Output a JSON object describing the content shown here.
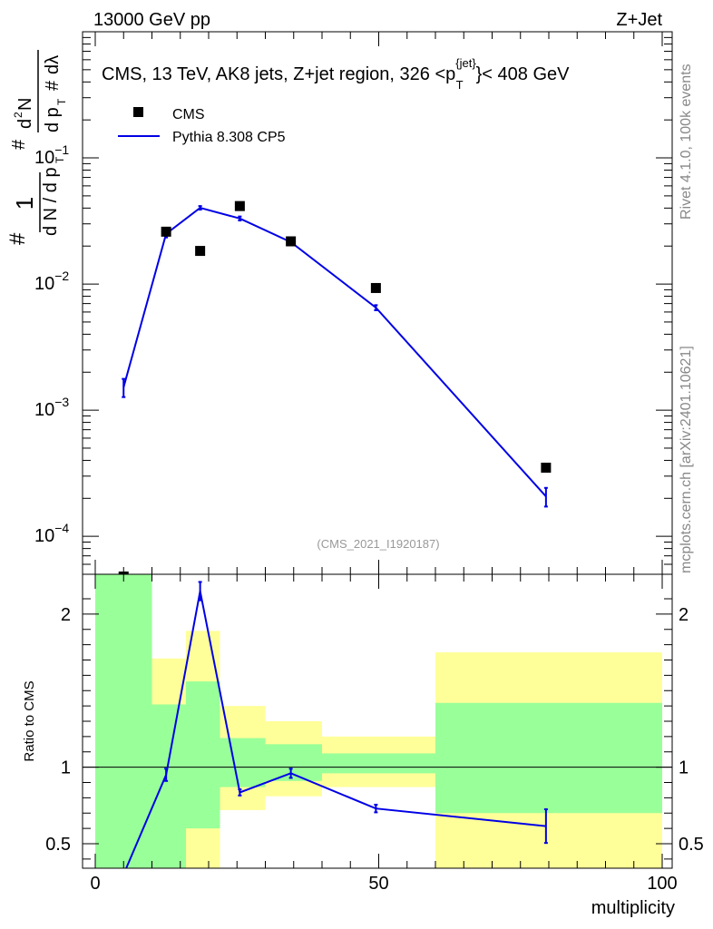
{
  "header": {
    "left": "13000 GeV pp",
    "right": "Z+Jet"
  },
  "side_labels": {
    "rivet": "Rivet 4.1.0,  100k events",
    "mcplots": "mcplots.cern.ch [arXiv:2401.10621]"
  },
  "colors": {
    "mc_line": "#0000e6",
    "band_inner": "#99ff99",
    "band_outer": "#ffff99",
    "data_marker": "#000000"
  },
  "chart_data": [
    {
      "type": "line",
      "panel": "main",
      "title": "CMS, 13 TeV, AK8 jets, Z+jet region, 326 <p_T^{jet}< 408 GeV",
      "title_parts": {
        "prefix": "CMS, 13 TeV, AK8 jets, Z+jet region, 326 <p",
        "sup": "{jet}",
        "sub": "T",
        "suffix": "}< 408 GeV"
      },
      "ylabel": "1/(dN/dp_T) d²N/(dp_T dλ)",
      "yscale": "log",
      "ylim": [
        5e-05,
        1
      ],
      "xlim": [
        -1.5,
        100
      ],
      "yticks": [
        {
          "value": 0.1,
          "base": "10",
          "exp": "−1"
        },
        {
          "value": 0.01,
          "base": "10",
          "exp": "−2"
        },
        {
          "value": 0.001,
          "base": "10",
          "exp": "−3"
        },
        {
          "value": 0.0001,
          "base": "10",
          "exp": "−4"
        }
      ],
      "annotation": "(CMS_2021_I1920187)",
      "legend": {
        "position": "top-left",
        "entries": [
          "CMS",
          "Pythia 8.308 CP5"
        ]
      },
      "series": [
        {
          "name": "CMS",
          "kind": "markers",
          "x": [
            5,
            12.5,
            18.5,
            25.5,
            34.5,
            49.5,
            79.5
          ],
          "y": [
            4.8e-05,
            0.026,
            0.0183,
            0.0415,
            0.0218,
            0.0093,
            0.00035
          ]
        },
        {
          "name": "Pythia 8.308 CP5",
          "kind": "line",
          "x": [
            5,
            12.5,
            18.5,
            25.5,
            34.5,
            49.5,
            79.5
          ],
          "y": [
            0.00152,
            0.025,
            0.0402,
            0.0331,
            0.0215,
            0.0065,
            0.000207
          ],
          "yerr_low": [
            0.00025,
            0.0016,
            0.0013,
            0.0012,
            0.0007,
            0.0003,
            3.5e-05
          ],
          "yerr_high": [
            0.00025,
            0.0016,
            0.0013,
            0.0012,
            0.0007,
            0.0003,
            3.5e-05
          ]
        }
      ]
    },
    {
      "type": "line",
      "panel": "ratio",
      "ylabel": "Ratio to CMS",
      "xlabel": "multiplicity",
      "ylim": [
        0.34,
        2.26
      ],
      "xlim": [
        -1.5,
        100
      ],
      "xticks": [
        0,
        50,
        100
      ],
      "yticks": [
        0.5,
        1,
        2
      ],
      "reference_line": 1,
      "bands": [
        {
          "x0": 0,
          "x1": 10,
          "inner": [
            0.3,
            2.26
          ],
          "outer": [
            0.3,
            2.26
          ]
        },
        {
          "x0": 10,
          "x1": 16,
          "inner": [
            0.3,
            1.41
          ],
          "outer": [
            0.3,
            1.71
          ]
        },
        {
          "x0": 16,
          "x1": 22,
          "inner": [
            0.6,
            1.56
          ],
          "outer": [
            0.3,
            1.89
          ]
        },
        {
          "x0": 22,
          "x1": 30,
          "inner": [
            0.87,
            1.19
          ],
          "outer": [
            0.72,
            1.4
          ]
        },
        {
          "x0": 30,
          "x1": 40,
          "inner": [
            0.91,
            1.15
          ],
          "outer": [
            0.81,
            1.3
          ]
        },
        {
          "x0": 40,
          "x1": 60,
          "inner": [
            0.96,
            1.09
          ],
          "outer": [
            0.87,
            1.2
          ]
        },
        {
          "x0": 60,
          "x1": 100,
          "inner": [
            0.7,
            1.42
          ],
          "outer": [
            0.3,
            1.75
          ]
        }
      ],
      "series": [
        {
          "name": "Pythia 8.308 CP5 / CMS",
          "x": [
            5,
            12.5,
            18.5,
            25.5,
            34.5,
            49.5,
            79.5
          ],
          "y": [
            0.3,
            0.95,
            2.15,
            0.835,
            0.96,
            0.73,
            0.615
          ],
          "yerr_low": [
            0,
            0.04,
            0.06,
            0.02,
            0.03,
            0.025,
            0.11
          ],
          "yerr_high": [
            0,
            0.04,
            0.06,
            0.02,
            0.03,
            0.025,
            0.11
          ]
        }
      ]
    }
  ]
}
